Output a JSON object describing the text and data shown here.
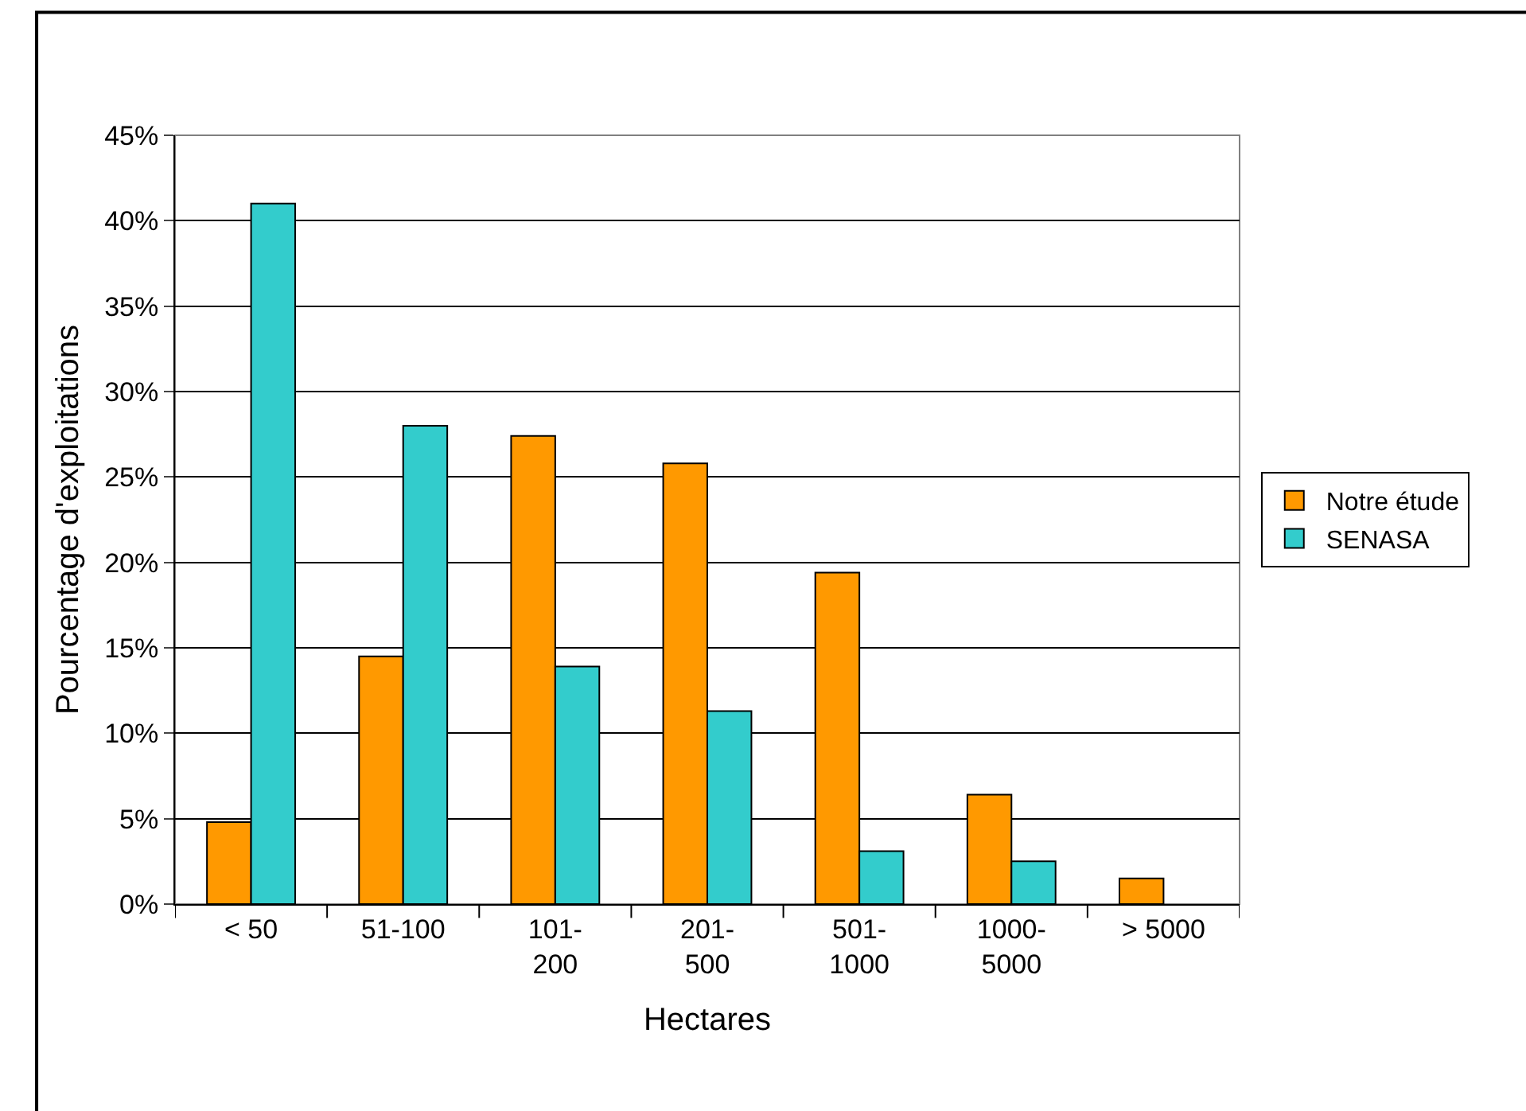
{
  "chart_data": {
    "type": "bar",
    "xlabel": "Hectares",
    "ylabel": "Pourcentage d'exploitations",
    "categories": [
      "< 50",
      "51-100",
      "101-\n200",
      "201-\n500",
      "501-\n1000",
      "1000-\n5000",
      "> 5000"
    ],
    "series": [
      {
        "name": "Notre étude",
        "color": "#ff9900",
        "values": [
          4.8,
          14.5,
          27.4,
          25.8,
          19.4,
          6.4,
          1.5
        ]
      },
      {
        "name": "SENASA",
        "color": "#33cccc",
        "values": [
          41,
          28,
          13.9,
          11.3,
          3.1,
          2.5,
          null
        ]
      }
    ],
    "ylim": [
      0,
      45
    ],
    "yticks": [
      {
        "value": 0,
        "label": "0%"
      },
      {
        "value": 5,
        "label": "5%"
      },
      {
        "value": 10,
        "label": "10%"
      },
      {
        "value": 15,
        "label": "15%"
      },
      {
        "value": 20,
        "label": "20%"
      },
      {
        "value": 25,
        "label": "25%"
      },
      {
        "value": 30,
        "label": "30%"
      },
      {
        "value": 35,
        "label": "35%"
      },
      {
        "value": 40,
        "label": "40%"
      },
      {
        "value": 45,
        "label": "45%"
      }
    ],
    "grid": "y",
    "legend": "right"
  }
}
